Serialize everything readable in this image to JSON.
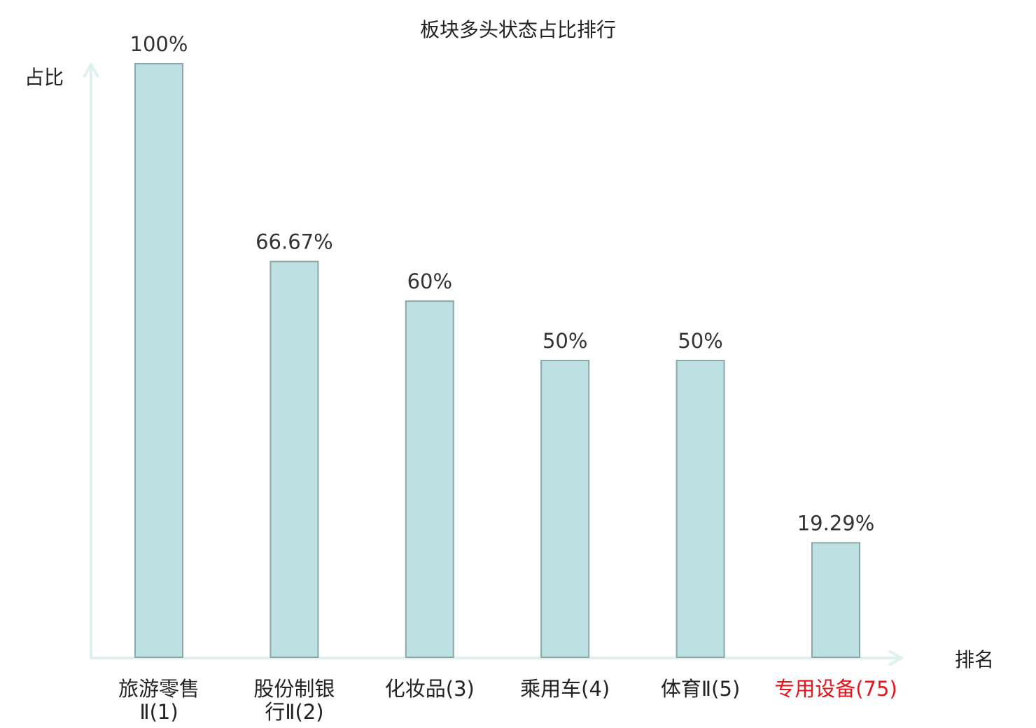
{
  "chart_data": {
    "type": "bar",
    "title": "板块多头状态占比排行",
    "ylabel": "占比",
    "xlabel": "排名",
    "ylim": [
      0,
      100
    ],
    "grid": false,
    "categories": [
      [
        "旅游零售",
        "Ⅱ(1)"
      ],
      [
        "股份制银",
        "行Ⅱ(2)"
      ],
      [
        "化妆品(3)"
      ],
      [
        "乘用车(4)"
      ],
      [
        "体育Ⅱ(5)"
      ],
      [
        "专用设备(75)"
      ]
    ],
    "values": [
      100,
      66.67,
      60,
      50,
      50,
      19.29
    ],
    "value_labels": [
      "100%",
      "66.67%",
      "60%",
      "50%",
      "50%",
      "19.29%"
    ],
    "highlight_index": 5,
    "colors": {
      "bar_fill": "#bde0e2",
      "bar_stroke": "#8aa6a8",
      "axis": "#dff1ef",
      "text": "#222222",
      "value_text": "#333333",
      "highlight_text": "#e8141b"
    }
  }
}
